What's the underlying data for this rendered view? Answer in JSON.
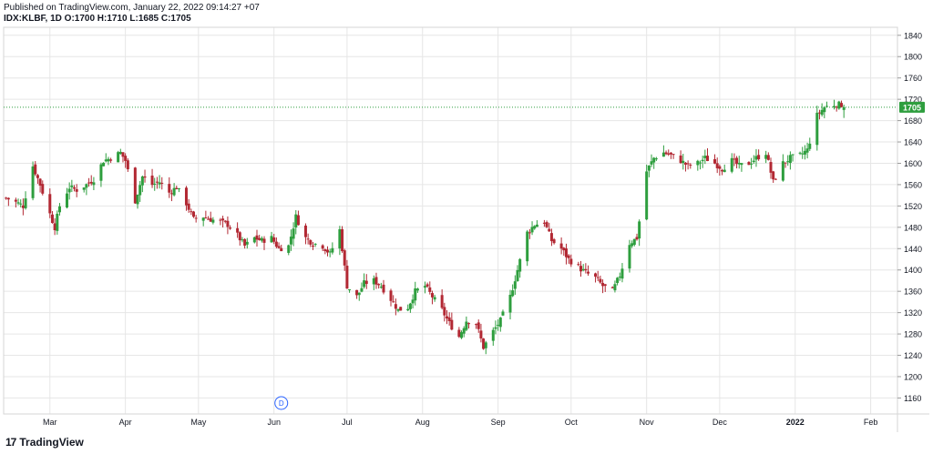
{
  "header": {
    "published": "Published on TradingView.com, January 22, 2022 09:14:27 +07",
    "symbol_line": "IDX:KLBF, 1D O:1700 H:1710 L:1685 C:1705"
  },
  "footer": {
    "brand": "TradingView"
  },
  "colors": {
    "up": "#26a69a",
    "up_fill": "#2e9e3e",
    "down": "#b22833",
    "grid": "#e6e6e6",
    "last_line": "#2e9e3e",
    "marker": "#2962ff"
  },
  "chart_data": {
    "type": "candlestick",
    "symbol": "IDX:KLBF",
    "interval": "1D",
    "last_price": 1705,
    "last_price_label": "1705",
    "ohlc_last": {
      "open": 1700,
      "high": 1710,
      "low": 1685,
      "close": 1705
    },
    "ylim": [
      1130,
      1855
    ],
    "y_ticks": [
      1160,
      1200,
      1240,
      1280,
      1320,
      1360,
      1400,
      1440,
      1480,
      1520,
      1560,
      1600,
      1640,
      1680,
      1720,
      1760,
      1800,
      1840
    ],
    "y_tick_labels": [
      "1160",
      "1200",
      "1240",
      "1280",
      "1320",
      "1360",
      "1400",
      "1440",
      "1480",
      "1520",
      "1560",
      "1600",
      "1640",
      "1680",
      "1720",
      "1760",
      "1800",
      "1840"
    ],
    "x_range": [
      "2021-02-10",
      "2022-02-12"
    ],
    "x_ticks": [
      {
        "date": "2021-03-01",
        "label": "Mar"
      },
      {
        "date": "2021-04-01",
        "label": "Apr"
      },
      {
        "date": "2021-05-01",
        "label": "May"
      },
      {
        "date": "2021-06-01",
        "label": "Jun"
      },
      {
        "date": "2021-07-01",
        "label": "Jul"
      },
      {
        "date": "2021-08-01",
        "label": "Aug"
      },
      {
        "date": "2021-09-01",
        "label": "Sep"
      },
      {
        "date": "2021-10-01",
        "label": "Oct"
      },
      {
        "date": "2021-11-01",
        "label": "Nov"
      },
      {
        "date": "2021-12-01",
        "label": "Dec"
      },
      {
        "date": "2022-01-01",
        "label": "2022"
      },
      {
        "date": "2022-02-01",
        "label": "Feb"
      }
    ],
    "event_marker": {
      "date": "2021-06-04",
      "label": "D"
    },
    "close_path": [
      [
        "2021-02-11",
        1535
      ],
      [
        "2021-02-16",
        1525
      ],
      [
        "2021-02-18",
        1520
      ],
      [
        "2021-02-22",
        1595
      ],
      [
        "2021-02-25",
        1560
      ],
      [
        "2021-03-01",
        1505
      ],
      [
        "2021-03-03",
        1480
      ],
      [
        "2021-03-05",
        1520
      ],
      [
        "2021-03-09",
        1555
      ],
      [
        "2021-03-12",
        1550
      ],
      [
        "2021-03-16",
        1560
      ],
      [
        "2021-03-19",
        1570
      ],
      [
        "2021-03-23",
        1605
      ],
      [
        "2021-03-26",
        1610
      ],
      [
        "2021-03-30",
        1620
      ],
      [
        "2021-04-01",
        1605
      ],
      [
        "2021-04-05",
        1530
      ],
      [
        "2021-04-08",
        1575
      ],
      [
        "2021-04-12",
        1560
      ],
      [
        "2021-04-15",
        1565
      ],
      [
        "2021-04-19",
        1545
      ],
      [
        "2021-04-22",
        1555
      ],
      [
        "2021-04-26",
        1525
      ],
      [
        "2021-04-29",
        1495
      ],
      [
        "2021-05-03",
        1500
      ],
      [
        "2021-05-06",
        1495
      ],
      [
        "2021-05-10",
        1490
      ],
      [
        "2021-05-13",
        1485
      ],
      [
        "2021-05-17",
        1465
      ],
      [
        "2021-05-20",
        1445
      ],
      [
        "2021-05-24",
        1460
      ],
      [
        "2021-05-27",
        1455
      ],
      [
        "2021-05-31",
        1460
      ],
      [
        "2021-06-03",
        1440
      ],
      [
        "2021-06-07",
        1445
      ],
      [
        "2021-06-10",
        1500
      ],
      [
        "2021-06-14",
        1460
      ],
      [
        "2021-06-17",
        1450
      ],
      [
        "2021-06-21",
        1445
      ],
      [
        "2021-06-24",
        1430
      ],
      [
        "2021-06-28",
        1475
      ],
      [
        "2021-07-01",
        1370
      ],
      [
        "2021-07-05",
        1350
      ],
      [
        "2021-07-08",
        1375
      ],
      [
        "2021-07-12",
        1380
      ],
      [
        "2021-07-15",
        1370
      ],
      [
        "2021-07-19",
        1345
      ],
      [
        "2021-07-22",
        1325
      ],
      [
        "2021-07-26",
        1330
      ],
      [
        "2021-07-29",
        1360
      ],
      [
        "2021-08-02",
        1370
      ],
      [
        "2021-08-05",
        1350
      ],
      [
        "2021-08-09",
        1325
      ],
      [
        "2021-08-12",
        1300
      ],
      [
        "2021-08-16",
        1275
      ],
      [
        "2021-08-19",
        1305
      ],
      [
        "2021-08-23",
        1300
      ],
      [
        "2021-08-26",
        1255
      ],
      [
        "2021-08-30",
        1285
      ],
      [
        "2021-09-02",
        1305
      ],
      [
        "2021-09-06",
        1350
      ],
      [
        "2021-09-09",
        1400
      ],
      [
        "2021-09-13",
        1470
      ],
      [
        "2021-09-16",
        1485
      ],
      [
        "2021-09-20",
        1490
      ],
      [
        "2021-09-23",
        1455
      ],
      [
        "2021-09-27",
        1440
      ],
      [
        "2021-09-30",
        1420
      ],
      [
        "2021-10-04",
        1405
      ],
      [
        "2021-10-07",
        1395
      ],
      [
        "2021-10-11",
        1385
      ],
      [
        "2021-10-14",
        1370
      ],
      [
        "2021-10-18",
        1360
      ],
      [
        "2021-10-21",
        1390
      ],
      [
        "2021-10-25",
        1450
      ],
      [
        "2021-10-28",
        1460
      ],
      [
        "2021-11-01",
        1585
      ],
      [
        "2021-11-04",
        1610
      ],
      [
        "2021-11-08",
        1620
      ],
      [
        "2021-11-11",
        1615
      ],
      [
        "2021-11-15",
        1605
      ],
      [
        "2021-11-18",
        1595
      ],
      [
        "2021-11-22",
        1600
      ],
      [
        "2021-11-25",
        1610
      ],
      [
        "2021-11-29",
        1600
      ],
      [
        "2021-12-02",
        1590
      ],
      [
        "2021-12-06",
        1605
      ],
      [
        "2021-12-09",
        1595
      ],
      [
        "2021-12-13",
        1600
      ],
      [
        "2021-12-16",
        1610
      ],
      [
        "2021-12-20",
        1620
      ],
      [
        "2021-12-23",
        1565
      ],
      [
        "2021-12-27",
        1600
      ],
      [
        "2021-12-30",
        1610
      ],
      [
        "2022-01-03",
        1615
      ],
      [
        "2022-01-06",
        1625
      ],
      [
        "2022-01-10",
        1690
      ],
      [
        "2022-01-13",
        1705
      ],
      [
        "2022-01-17",
        1710
      ],
      [
        "2022-01-20",
        1710
      ],
      [
        "2022-01-21",
        1705
      ]
    ]
  }
}
